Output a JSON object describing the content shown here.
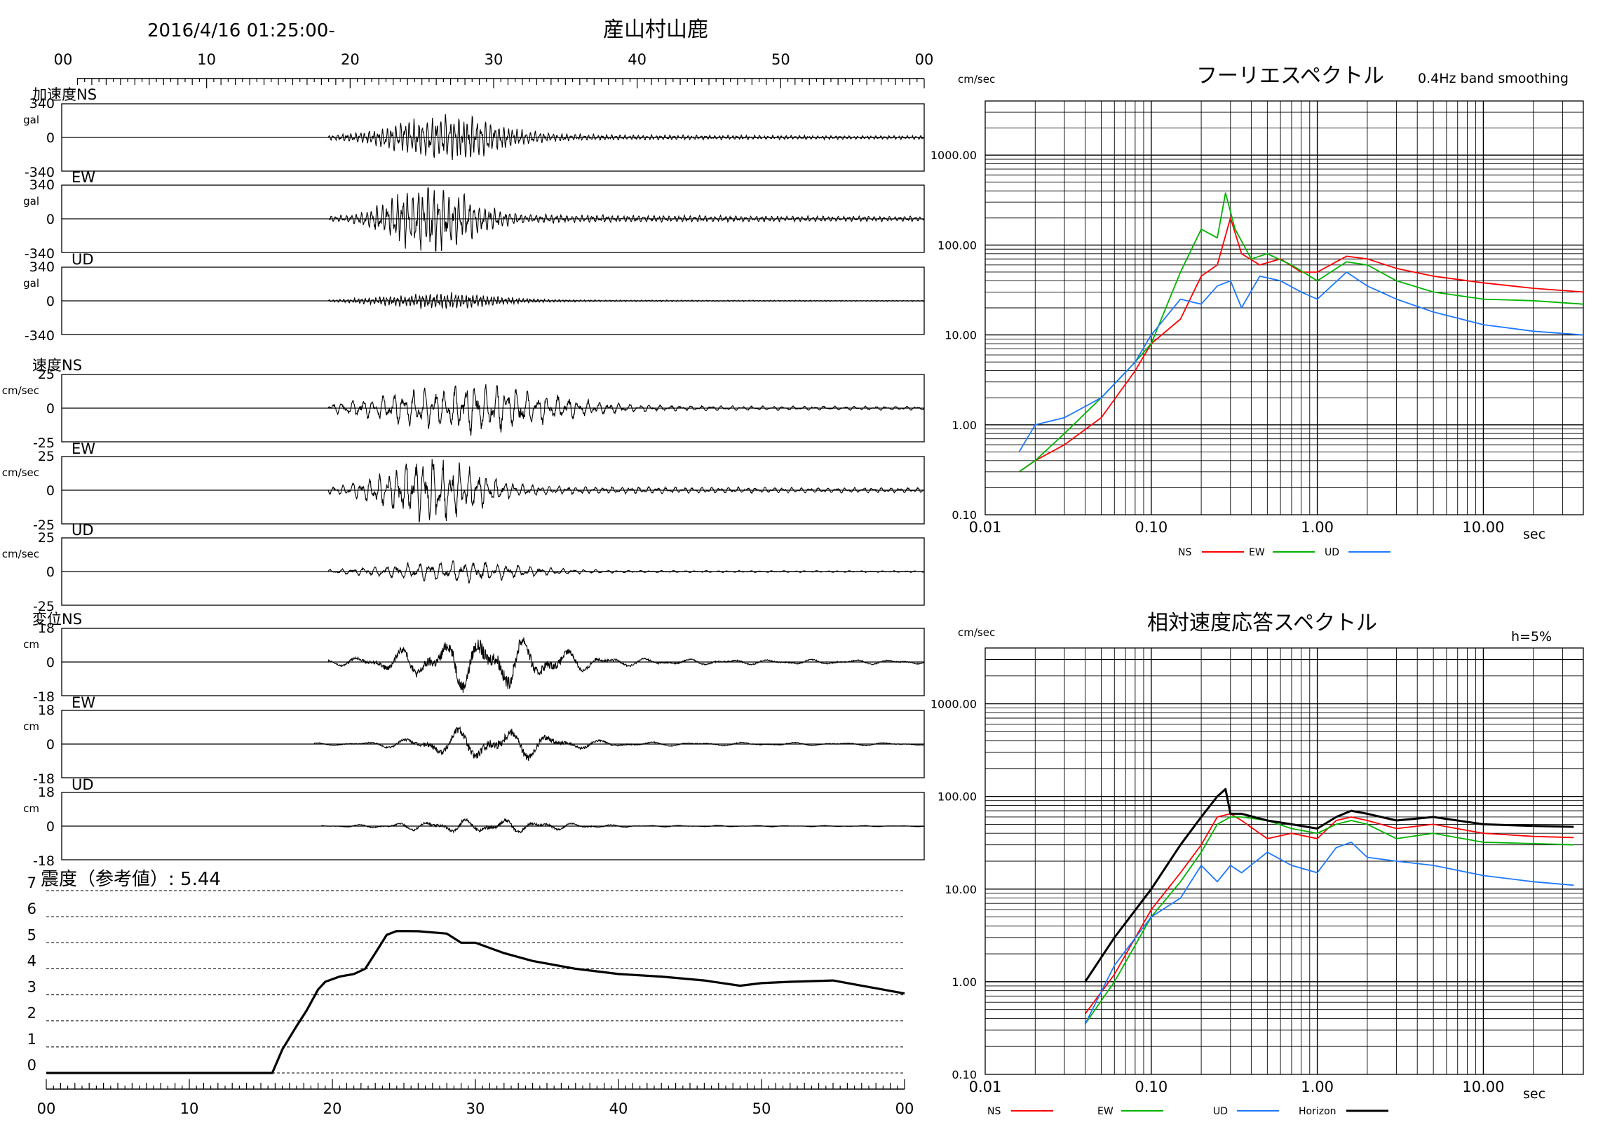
{
  "header": {
    "datetime": "2016/4/16 01:25:00-",
    "station": "産山村山鹿"
  },
  "time_ticks": [
    "00",
    "10",
    "20",
    "30",
    "40",
    "50",
    "00"
  ],
  "waveform_panels": [
    {
      "group": "加速度",
      "component": "NS",
      "unit": "gal",
      "max": "340",
      "zero": "0",
      "min": "-340",
      "amp": 28,
      "env_center": 26.5,
      "env_width": 4.5,
      "freq": 3.2,
      "start": 18.5
    },
    {
      "group": "",
      "component": "EW",
      "unit": "gal",
      "max": "340",
      "zero": "0",
      "min": "-340",
      "amp": 40,
      "env_center": 25.5,
      "env_width": 3.5,
      "freq": 2.8,
      "start": 18.5
    },
    {
      "group": "",
      "component": "UD",
      "unit": "gal",
      "max": "340",
      "zero": "0",
      "min": "-340",
      "amp": 9,
      "env_center": 26,
      "env_width": 5,
      "freq": 4.0,
      "start": 18.5
    },
    {
      "group": "速度",
      "component": "NS",
      "unit": "cm/sec",
      "max": "25",
      "zero": "0",
      "min": "-25",
      "amp": 28,
      "env_center": 28,
      "env_width": 7,
      "freq": 1.4,
      "start": 18.5
    },
    {
      "group": "",
      "component": "EW",
      "unit": "cm/sec",
      "max": "25",
      "zero": "0",
      "min": "-25",
      "amp": 38,
      "env_center": 25.5,
      "env_width": 4,
      "freq": 1.6,
      "start": 18.5
    },
    {
      "group": "",
      "component": "UD",
      "unit": "cm/sec",
      "max": "25",
      "zero": "0",
      "min": "-25",
      "amp": 12,
      "env_center": 27,
      "env_width": 6,
      "freq": 1.3,
      "start": 18.5
    },
    {
      "group": "変位",
      "component": "NS",
      "unit": "cm",
      "max": "18",
      "zero": "0",
      "min": "-18",
      "amp": 34,
      "env_center": 29,
      "env_width": 6,
      "freq": 0.35,
      "start": 18.5
    },
    {
      "group": "",
      "component": "EW",
      "unit": "cm",
      "max": "18",
      "zero": "0",
      "min": "-18",
      "amp": 22,
      "env_center": 29.5,
      "env_width": 5,
      "freq": 0.3,
      "start": 17.5
    },
    {
      "group": "",
      "component": "UD",
      "unit": "cm",
      "max": "18",
      "zero": "0",
      "min": "-18",
      "amp": 9,
      "env_center": 29,
      "env_width": 6,
      "freq": 0.4,
      "start": 18
    }
  ],
  "intensity": {
    "label": "震度（参考値）: 5.44",
    "y_ticks": [
      "0",
      "1",
      "2",
      "3",
      "4",
      "5",
      "6",
      "7"
    ],
    "ylim": [
      0,
      7
    ],
    "xlim": [
      0,
      60
    ]
  },
  "colors": {
    "ns": "#ff0000",
    "ew": "#00b400",
    "ud": "#1e78ff",
    "horizon": "#000000",
    "grid": "#000000"
  },
  "chart_data": [
    {
      "type": "line",
      "title": "震度（参考値）: 5.44",
      "xlabel": "",
      "ylabel": "",
      "xlim": [
        0,
        60
      ],
      "ylim": [
        0,
        7
      ],
      "series": [
        {
          "values_x": [
            0,
            15.8,
            16.5,
            17.5,
            18.2,
            19,
            19.5,
            20.5,
            21.5,
            22.3,
            23,
            23.8,
            24.5,
            26,
            28,
            29,
            30,
            32,
            34,
            37,
            40,
            43,
            46,
            48.5,
            50,
            52,
            55,
            57,
            58.5,
            60
          ],
          "values": [
            0,
            0,
            0.9,
            1.8,
            2.4,
            3.2,
            3.5,
            3.7,
            3.8,
            4.0,
            4.6,
            5.3,
            5.45,
            5.44,
            5.35,
            5.0,
            5.0,
            4.6,
            4.3,
            4.0,
            3.8,
            3.7,
            3.55,
            3.35,
            3.45,
            3.5,
            3.55,
            3.35,
            3.2,
            3.05
          ]
        }
      ]
    },
    {
      "type": "line",
      "title": "フーリエスペクトル",
      "subtitle": "0.4Hz band smoothing",
      "ylabel": "cm/sec",
      "xlabel": "sec",
      "x_scale": "log",
      "y_scale": "log",
      "xlim": [
        0.01,
        40
      ],
      "ylim": [
        0.1,
        4000
      ],
      "x_tick_labels": [
        "0.01",
        "0.10",
        "1.00",
        "10.00"
      ],
      "y_tick_labels": [
        "0.10",
        "1.00",
        "10.00",
        "100.00",
        "1000.00"
      ],
      "legend": [
        "NS",
        "EW",
        "UD"
      ],
      "series": [
        {
          "name": "NS",
          "x": [
            0.016,
            0.02,
            0.03,
            0.05,
            0.08,
            0.1,
            0.15,
            0.2,
            0.25,
            0.3,
            0.35,
            0.45,
            0.6,
            0.8,
            1.0,
            1.5,
            2,
            3,
            5,
            10,
            20,
            40
          ],
          "values": [
            0.3,
            0.4,
            0.6,
            1.2,
            4,
            8,
            15,
            45,
            60,
            200,
            80,
            60,
            70,
            50,
            50,
            75,
            70,
            55,
            45,
            38,
            33,
            30
          ]
        },
        {
          "name": "EW",
          "x": [
            0.016,
            0.02,
            0.03,
            0.05,
            0.08,
            0.1,
            0.15,
            0.2,
            0.25,
            0.28,
            0.32,
            0.4,
            0.5,
            0.7,
            1.0,
            1.5,
            2,
            3,
            5,
            10,
            20,
            40
          ],
          "values": [
            0.3,
            0.4,
            0.8,
            2,
            5,
            8,
            50,
            150,
            120,
            380,
            150,
            70,
            80,
            60,
            40,
            65,
            60,
            40,
            30,
            25,
            24,
            22
          ]
        },
        {
          "name": "UD",
          "x": [
            0.016,
            0.02,
            0.03,
            0.05,
            0.08,
            0.1,
            0.15,
            0.2,
            0.25,
            0.3,
            0.35,
            0.45,
            0.6,
            0.8,
            1.0,
            1.5,
            2,
            3,
            5,
            10,
            20,
            40
          ],
          "values": [
            0.5,
            1.0,
            1.2,
            2,
            5,
            10,
            25,
            22,
            35,
            40,
            20,
            45,
            40,
            30,
            25,
            50,
            35,
            25,
            18,
            13,
            11,
            10
          ]
        }
      ]
    },
    {
      "type": "line",
      "title": "相対速度応答スペクトル",
      "annotation": "h=5%",
      "ylabel": "cm/sec",
      "xlabel": "sec",
      "x_scale": "log",
      "y_scale": "log",
      "xlim": [
        0.01,
        40
      ],
      "ylim": [
        0.1,
        4000
      ],
      "x_tick_labels": [
        "0.01",
        "0.10",
        "1.00",
        "10.00"
      ],
      "y_tick_labels": [
        "0.10",
        "1.00",
        "10.00",
        "100.00",
        "1000.00"
      ],
      "legend": [
        "NS",
        "EW",
        "UD",
        "Horizon"
      ],
      "series": [
        {
          "name": "NS",
          "x": [
            0.04,
            0.06,
            0.1,
            0.15,
            0.2,
            0.25,
            0.3,
            0.35,
            0.5,
            0.7,
            1.0,
            1.3,
            1.6,
            2,
            3,
            5,
            10,
            20,
            35
          ],
          "values": [
            0.45,
            1.2,
            6,
            15,
            30,
            60,
            65,
            55,
            35,
            40,
            35,
            55,
            60,
            55,
            45,
            50,
            40,
            37,
            36
          ]
        },
        {
          "name": "EW",
          "x": [
            0.04,
            0.06,
            0.1,
            0.15,
            0.2,
            0.25,
            0.3,
            0.35,
            0.5,
            0.7,
            1.0,
            1.3,
            1.6,
            2,
            3,
            5,
            10,
            20,
            35
          ],
          "values": [
            0.35,
            1.0,
            5,
            12,
            25,
            50,
            60,
            60,
            55,
            45,
            40,
            50,
            55,
            50,
            35,
            40,
            32,
            31,
            30
          ]
        },
        {
          "name": "UD",
          "x": [
            0.04,
            0.06,
            0.1,
            0.15,
            0.2,
            0.25,
            0.3,
            0.35,
            0.5,
            0.7,
            1.0,
            1.3,
            1.6,
            2,
            3,
            5,
            10,
            20,
            35
          ],
          "values": [
            0.35,
            1.5,
            5,
            8,
            18,
            12,
            18,
            15,
            25,
            18,
            15,
            28,
            32,
            22,
            20,
            18,
            14,
            12,
            11
          ]
        },
        {
          "name": "Horizon",
          "x": [
            0.04,
            0.06,
            0.1,
            0.15,
            0.2,
            0.25,
            0.28,
            0.3,
            0.35,
            0.5,
            0.7,
            1.0,
            1.3,
            1.6,
            2,
            3,
            5,
            10,
            20,
            35
          ],
          "values": [
            1.0,
            3,
            10,
            30,
            60,
            100,
            120,
            65,
            65,
            55,
            50,
            45,
            60,
            70,
            65,
            55,
            60,
            50,
            48,
            47
          ]
        }
      ]
    }
  ]
}
